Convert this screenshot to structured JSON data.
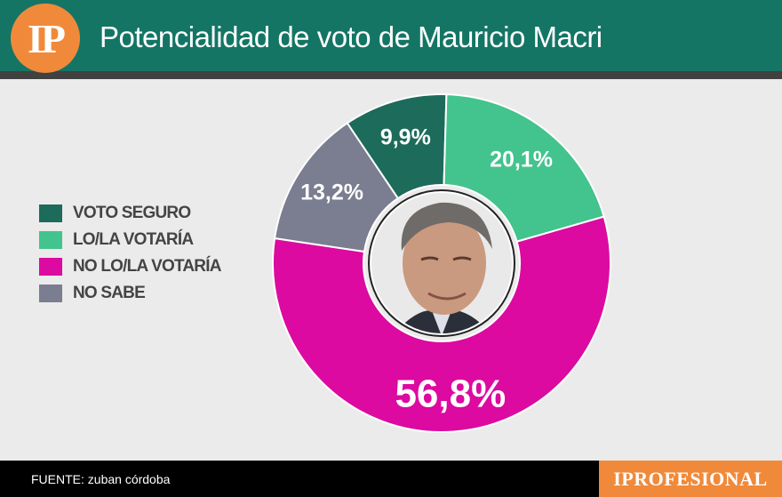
{
  "header": {
    "logo_text": "IP",
    "title": "Potencialidad de voto de Mauricio Macri"
  },
  "chart_data": {
    "type": "pie",
    "title": "Potencialidad de voto de Mauricio Macri",
    "legend_position": "left",
    "center_image": "portrait",
    "categories": [
      "VOTO SEGURO",
      "LO/LA VOTARÍA",
      "NO LO/LA VOTARÍA",
      "NO SABE"
    ],
    "values": [
      9.9,
      20.1,
      56.8,
      13.2
    ],
    "value_labels": [
      "9,9%",
      "20,1%",
      "56,8%",
      "13,2%"
    ],
    "colors": [
      "#1d6b5a",
      "#43c38d",
      "#dc0aa0",
      "#7b7d90"
    ]
  },
  "footer": {
    "source": "FUENTE: zuban córdoba",
    "brand": "IPROFESIONAL"
  }
}
